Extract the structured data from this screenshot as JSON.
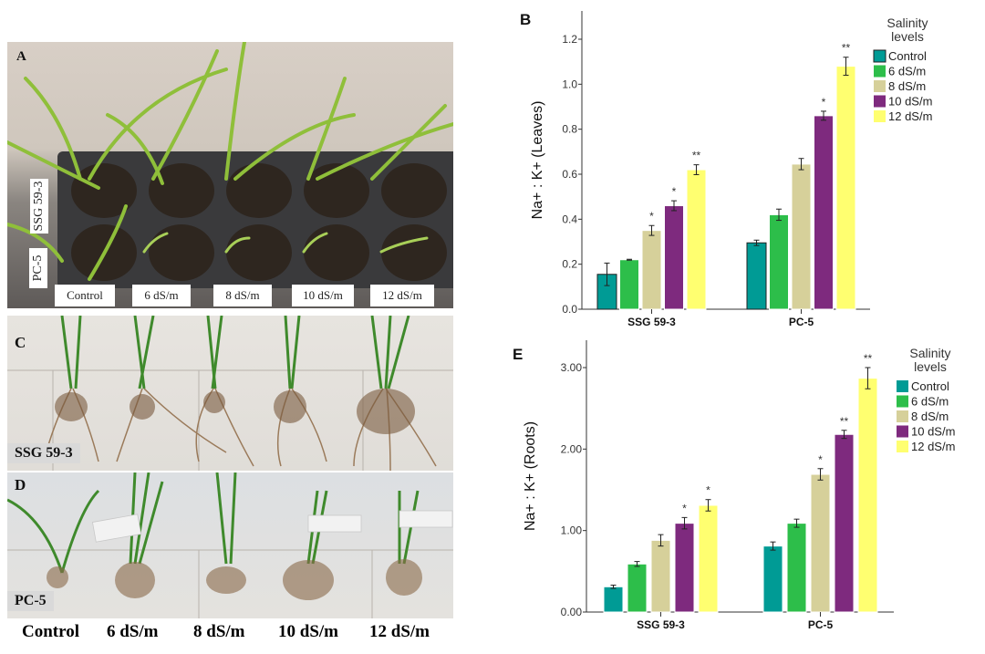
{
  "figure": {
    "panelA": {
      "letter": "A",
      "row_labels": [
        "SSG 59-3",
        "PC-5"
      ],
      "column_labels": [
        "Control",
        "6 dS/m",
        "8 dS/m",
        "10 dS/m",
        "12 dS/m"
      ]
    },
    "panelC": {
      "letter": "C",
      "label": "SSG 59-3"
    },
    "panelD": {
      "letter": "D",
      "label": "PC-5"
    },
    "bottom_labels": [
      "Control",
      "6 dS/m",
      "8 dS/m",
      "10 dS/m",
      "12 dS/m"
    ]
  },
  "chart_data": [
    {
      "panel": "B",
      "type": "bar",
      "title": "",
      "xlabel": "",
      "ylabel": "Na+ : K+ (Leaves)",
      "ylim": [
        0,
        1.3
      ],
      "yticks": [
        "0.0",
        "0.2",
        "0.4",
        "0.6",
        "0.8",
        "1.0",
        "1.2"
      ],
      "ytick_values": [
        0,
        0.2,
        0.4,
        0.6,
        0.8,
        1.0,
        1.2
      ],
      "categories": [
        "SSG 59-3",
        "PC-5"
      ],
      "legend_title": "Salinity levels",
      "legend_position": "top-right",
      "series": [
        {
          "name": "Control",
          "color": "#009b95",
          "values": [
            0.155,
            0.295
          ],
          "errors": [
            0.05,
            0.012
          ],
          "sig": [
            "",
            ""
          ]
        },
        {
          "name": "6 dS/m",
          "color": "#2dbe4a",
          "values": [
            0.22,
            0.42
          ],
          "errors": [
            0.002,
            0.025
          ],
          "sig": [
            "",
            ""
          ]
        },
        {
          "name": "8 dS/m",
          "color": "#d6d09a",
          "values": [
            0.35,
            0.645
          ],
          "errors": [
            0.022,
            0.025
          ],
          "sig": [
            "*",
            ""
          ]
        },
        {
          "name": "10 dS/m",
          "color": "#7e2a7e",
          "values": [
            0.46,
            0.86
          ],
          "errors": [
            0.022,
            0.02
          ],
          "sig": [
            "*",
            "*"
          ]
        },
        {
          "name": "12 dS/m",
          "color": "#ffff70",
          "values": [
            0.62,
            1.08
          ],
          "errors": [
            0.022,
            0.04
          ],
          "sig": [
            "**",
            "**"
          ]
        }
      ]
    },
    {
      "panel": "E",
      "type": "bar",
      "title": "",
      "xlabel": "",
      "ylabel": "Na+ : K+ (Roots)",
      "ylim": [
        0,
        3.3
      ],
      "yticks": [
        "0.00",
        "1.00",
        "2.00",
        "3.00"
      ],
      "ytick_values": [
        0,
        1,
        2,
        3
      ],
      "categories": [
        "SSG 59-3",
        "PC-5"
      ],
      "legend_title": "Salinity levels",
      "legend_position": "top-right",
      "series": [
        {
          "name": "Control",
          "color": "#009b95",
          "values": [
            0.31,
            0.81
          ],
          "errors": [
            0.02,
            0.05
          ],
          "sig": [
            "",
            ""
          ]
        },
        {
          "name": "6 dS/m",
          "color": "#2dbe4a",
          "values": [
            0.59,
            1.09
          ],
          "errors": [
            0.03,
            0.05
          ],
          "sig": [
            "",
            ""
          ]
        },
        {
          "name": "8 dS/m",
          "color": "#d6d09a",
          "values": [
            0.88,
            1.69
          ],
          "errors": [
            0.07,
            0.07
          ],
          "sig": [
            "",
            "*"
          ]
        },
        {
          "name": "10 dS/m",
          "color": "#7e2a7e",
          "values": [
            1.09,
            2.18
          ],
          "errors": [
            0.07,
            0.05
          ],
          "sig": [
            "*",
            "**"
          ]
        },
        {
          "name": "12 dS/m",
          "color": "#ffff70",
          "values": [
            1.31,
            2.87
          ],
          "errors": [
            0.07,
            0.13
          ],
          "sig": [
            "*",
            "**"
          ]
        }
      ]
    }
  ]
}
